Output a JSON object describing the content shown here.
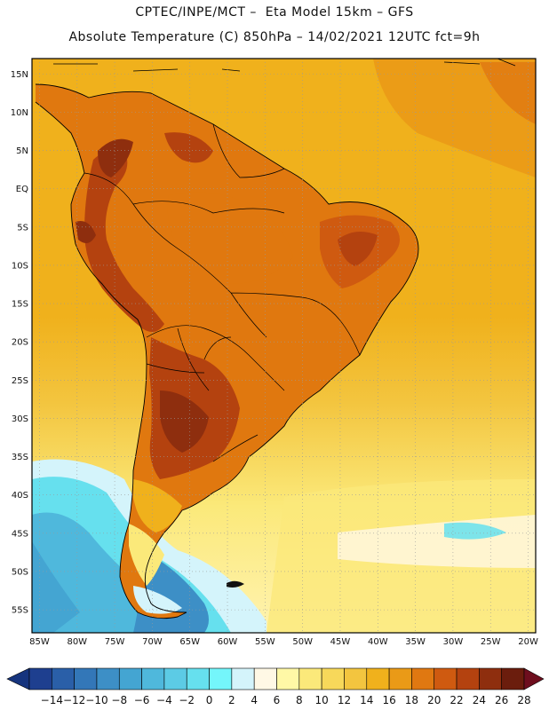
{
  "header": {
    "line1": "CPTEC/INPE/MCT –  Eta Model 15km – GFS",
    "line2": "Absolute Temperature (C) 850hPa – 14/02/2021 12UTC fct=9h"
  },
  "axes": {
    "lat_labels": [
      "15N",
      "10N",
      "5N",
      "EQ",
      "5S",
      "10S",
      "15S",
      "20S",
      "25S",
      "30S",
      "35S",
      "40S",
      "45S",
      "50S",
      "55S"
    ],
    "lat_values": [
      15,
      10,
      5,
      0,
      -5,
      -10,
      -15,
      -20,
      -25,
      -30,
      -35,
      -40,
      -45,
      -50,
      -55
    ],
    "lon_labels": [
      "85W",
      "80W",
      "75W",
      "70W",
      "65W",
      "60W",
      "55W",
      "50W",
      "45W",
      "40W",
      "35W",
      "30W",
      "25W",
      "20W"
    ],
    "lon_values": [
      -85,
      -80,
      -75,
      -70,
      -65,
      -60,
      -55,
      -50,
      -45,
      -40,
      -35,
      -30,
      -25,
      -20
    ],
    "lat_range": [
      -58,
      17
    ],
    "lon_range": [
      -86,
      -19
    ]
  },
  "colorbar": {
    "labels": [
      "-14",
      "-12",
      "-10",
      "-8",
      "-6",
      "-4",
      "-2",
      "0",
      "2",
      "4",
      "6",
      "8",
      "10",
      "12",
      "14",
      "16",
      "18",
      "20",
      "22",
      "24",
      "26",
      "28"
    ],
    "colors": [
      "#1e3f8f",
      "#2a5fa8",
      "#3377b8",
      "#3d8fc6",
      "#44a5d2",
      "#4fb8dc",
      "#5ccbe5",
      "#66e0ee",
      "#74f6fb",
      "#d4f4fb",
      "#fff8e5",
      "#fff8a6",
      "#fbe97a",
      "#f7d85a",
      "#f3c53f",
      "#f0b11c",
      "#ea9a17",
      "#e07811",
      "#cf5a10",
      "#b4420f",
      "#8e2e0e",
      "#6b1d0d"
    ],
    "under_color": "#16347e",
    "over_color": "#6e0e1e"
  },
  "palette": {
    "ocean_north": "#f0b11c",
    "ocean_mid": "#f3c53f",
    "ocean_south": "#fbe97a",
    "cold_water": "#66e0ee",
    "continent": "#e0780f",
    "andes_hot": "#b4420f",
    "chaco_hot": "#8e2e0e",
    "patagonia": "#f0b11c",
    "coast_line": "#000000"
  }
}
